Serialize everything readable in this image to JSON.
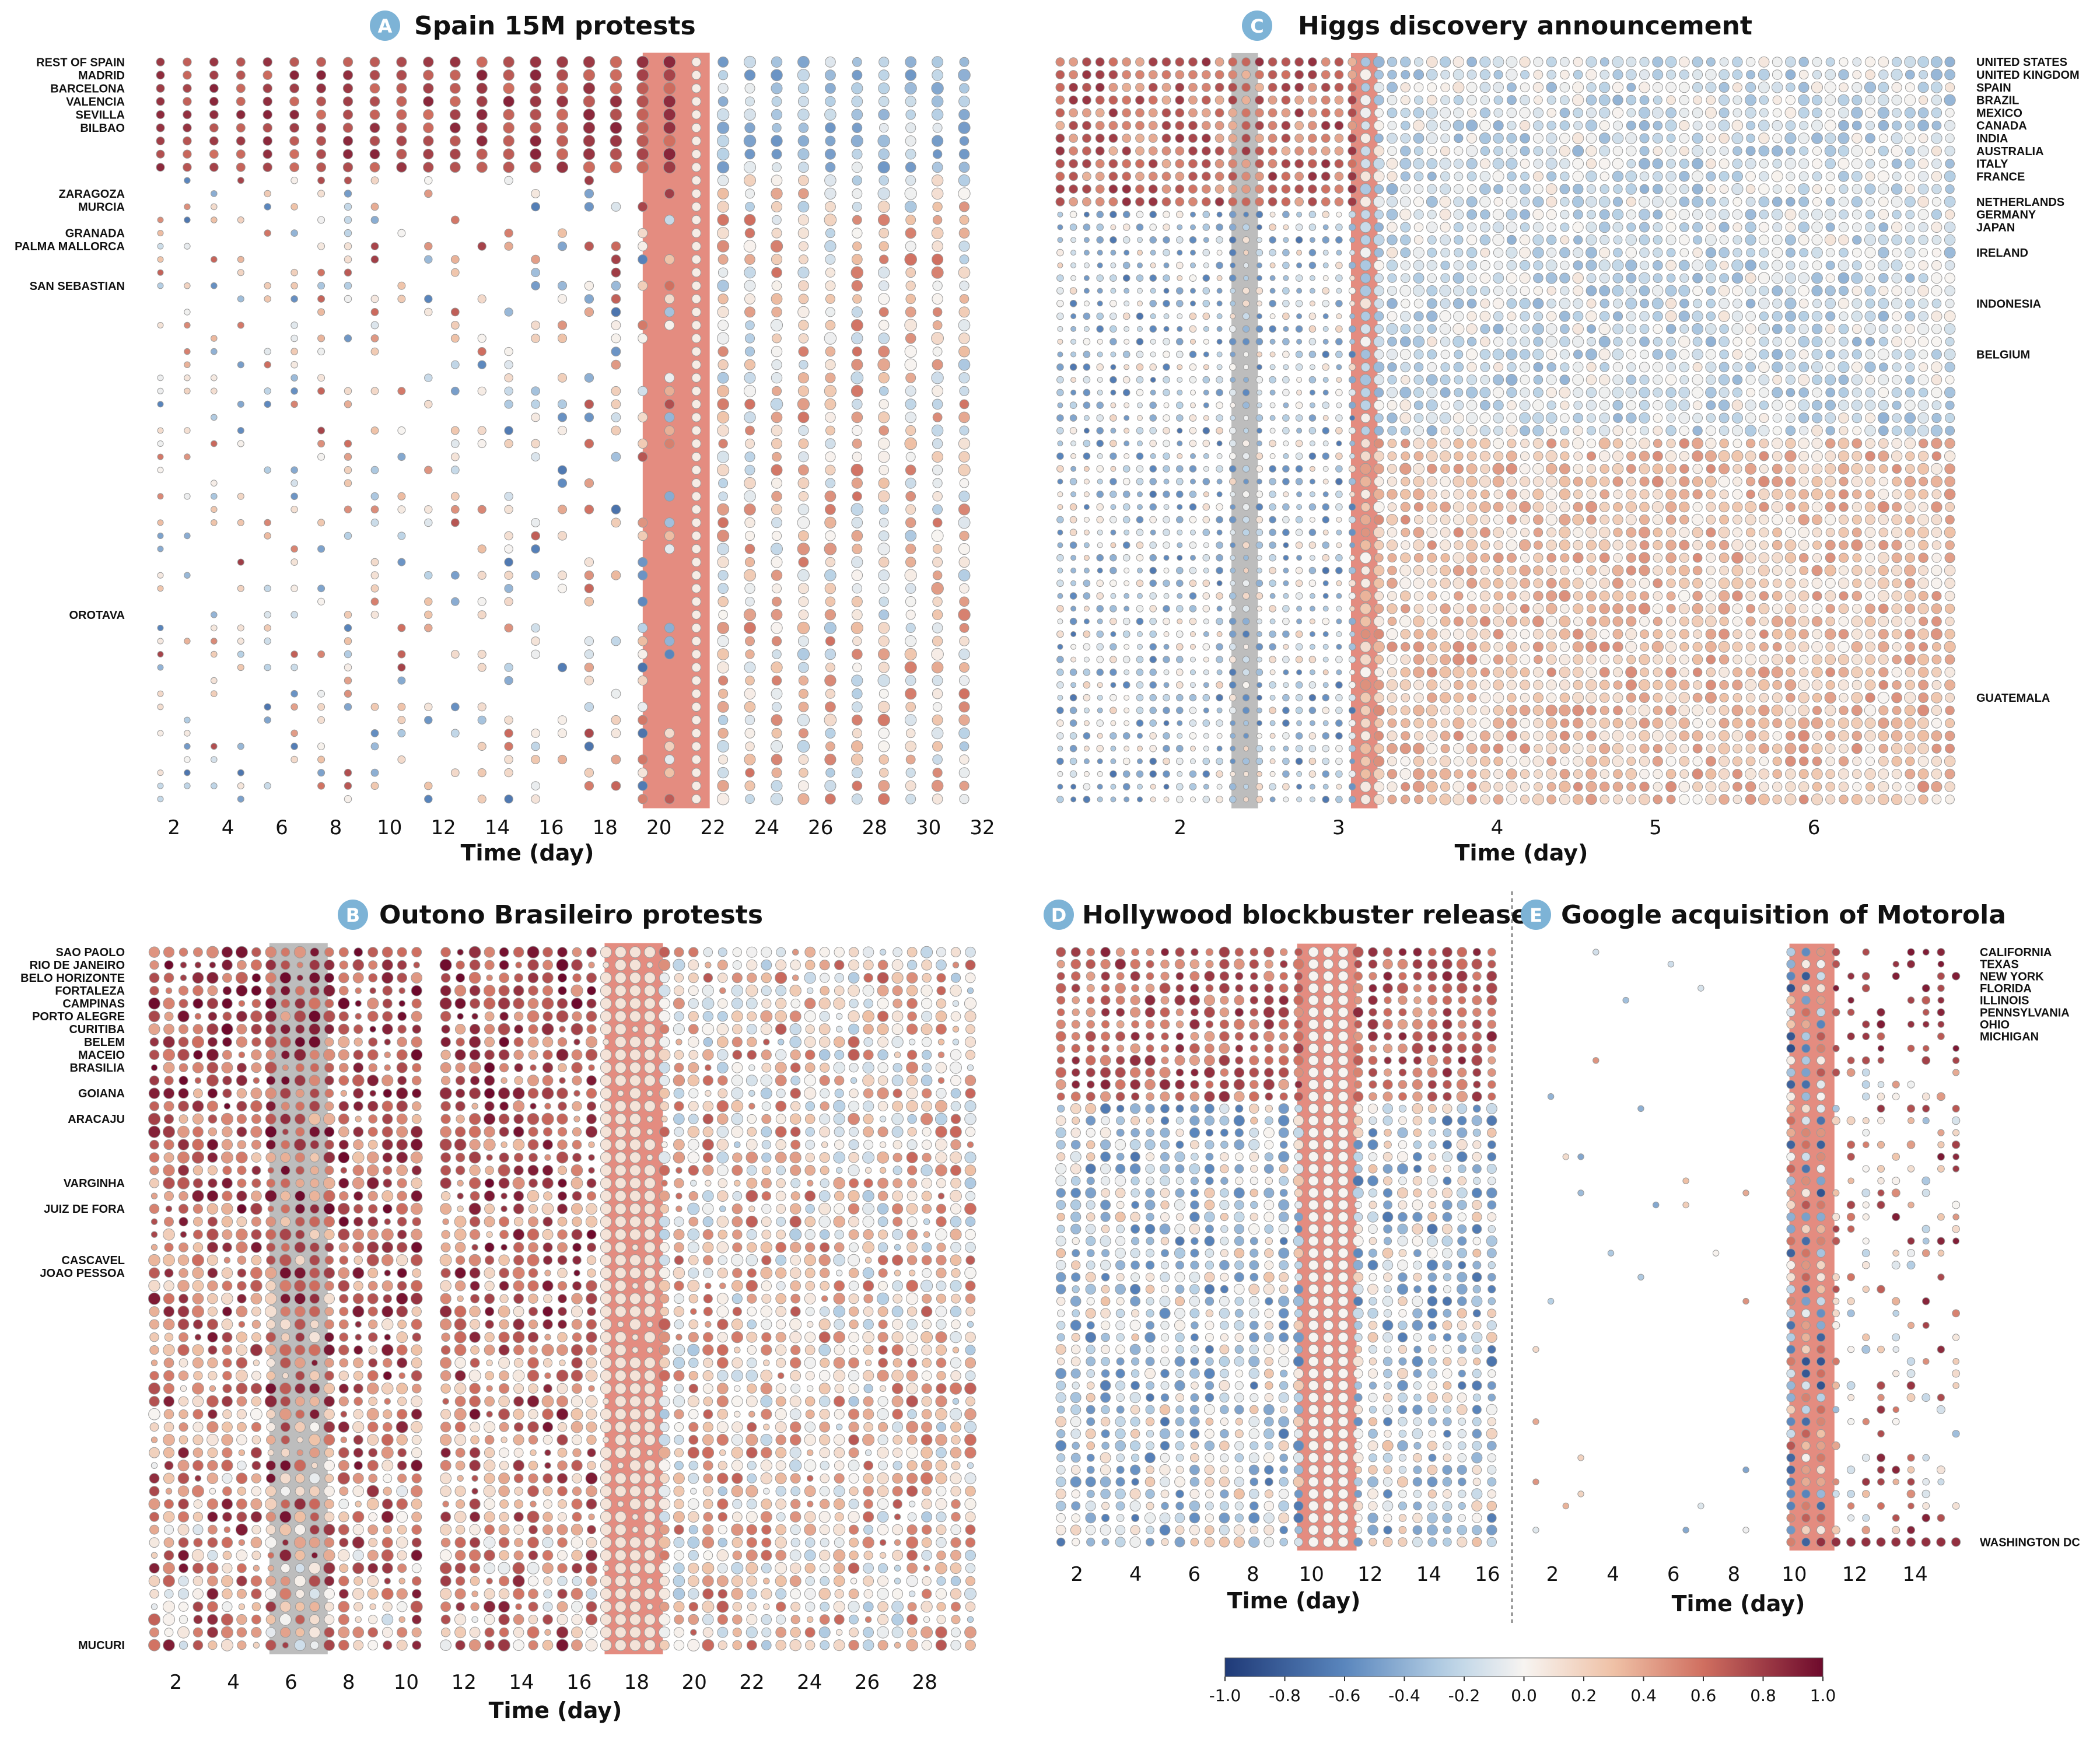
{
  "colors": {
    "negative": "#2b4a8a",
    "neutral": "#f7f7f7",
    "positive": "#7a1030",
    "badge": "#7db3d6",
    "highlight_red": "#e48c80",
    "highlight_gray": "#bdbdbd",
    "divider": "#777777"
  },
  "colorbar": {
    "ticks": [
      "-1.0",
      "-0.8",
      "-0.6",
      "-0.4",
      "-0.2",
      "0.0",
      "0.2",
      "0.4",
      "0.6",
      "0.8",
      "1.0"
    ],
    "range": [
      -1.0,
      1.0
    ]
  },
  "chart_data": [
    {
      "id": "A",
      "type": "scatter",
      "title": "Spain 15M protests",
      "xlabel": "Time (day)",
      "ylabel": "",
      "xlim": [
        1,
        32
      ],
      "x_ticks": [
        "2",
        "4",
        "6",
        "8",
        "10",
        "12",
        "14",
        "16",
        "18",
        "20",
        "22",
        "24",
        "26",
        "28",
        "30",
        "32"
      ],
      "n_rows": 57,
      "n_cols": 31,
      "label_side": "left",
      "row_labels": [
        {
          "row": 0,
          "label": "REST OF SPAIN"
        },
        {
          "row": 1,
          "label": "MADRID"
        },
        {
          "row": 2,
          "label": "BARCELONA"
        },
        {
          "row": 3,
          "label": "VALENCIA"
        },
        {
          "row": 4,
          "label": "SEVILLA"
        },
        {
          "row": 5,
          "label": "BILBAO"
        },
        {
          "row": 10,
          "label": "ZARAGOZA"
        },
        {
          "row": 11,
          "label": "MURCIA"
        },
        {
          "row": 13,
          "label": "GRANADA"
        },
        {
          "row": 14,
          "label": "PALMA MALLORCA"
        },
        {
          "row": 17,
          "label": "SAN SEBASTIAN"
        },
        {
          "row": 42,
          "label": "OROTAVA"
        }
      ],
      "highlights": [
        {
          "from_col": 18.6,
          "to_col": 20.1,
          "color": "red"
        }
      ],
      "pattern": {
        "event_col": 19.5,
        "profile": "spain"
      }
    },
    {
      "id": "B",
      "type": "scatter",
      "title": "Outono Brasileiro protests",
      "xlabel": "Time (day)",
      "ylabel": "",
      "xlim": [
        1,
        30
      ],
      "x_ticks": [
        "2",
        "4",
        "6",
        "8",
        "10",
        "12",
        "14",
        "16",
        "18",
        "20",
        "22",
        "24",
        "26",
        "28"
      ],
      "n_rows": 55,
      "n_cols": 57,
      "label_side": "left",
      "row_labels": [
        {
          "row": 0,
          "label": "SAO PAOLO"
        },
        {
          "row": 1,
          "label": "RIO DE JANEIRO"
        },
        {
          "row": 2,
          "label": "BELO HORIZONTE"
        },
        {
          "row": 3,
          "label": "FORTALEZA"
        },
        {
          "row": 4,
          "label": "CAMPINAS"
        },
        {
          "row": 5,
          "label": "PORTO ALEGRE"
        },
        {
          "row": 6,
          "label": "CURITIBA"
        },
        {
          "row": 7,
          "label": "BELEM"
        },
        {
          "row": 8,
          "label": "MACEIO"
        },
        {
          "row": 9,
          "label": "BRASILIA"
        },
        {
          "row": 11,
          "label": "GOIANA"
        },
        {
          "row": 13,
          "label": "ARACAJU"
        },
        {
          "row": 18,
          "label": "VARGINHA"
        },
        {
          "row": 20,
          "label": "JUIZ DE FORA"
        },
        {
          "row": 24,
          "label": "CASCAVEL"
        },
        {
          "row": 25,
          "label": "JOAO PESSOA"
        },
        {
          "row": 54,
          "label": "MUCURI"
        }
      ],
      "highlights": [
        {
          "from_col": 8.5,
          "to_col": 11.5,
          "color": "gray"
        },
        {
          "from_col": 31.5,
          "to_col": 34.5,
          "color": "red"
        }
      ],
      "gap_cols": [
        19
      ],
      "pattern": {
        "event_col": 33,
        "profile": "brazil"
      }
    },
    {
      "id": "C",
      "type": "scatter",
      "title": "Higgs discovery announcement",
      "xlabel": "Time (day)",
      "ylabel": "",
      "xlim": [
        1.2,
        6.9
      ],
      "x_ticks": [
        "2",
        "3",
        "4",
        "5",
        "6"
      ],
      "n_rows": 59,
      "n_cols": 68,
      "label_side": "right",
      "row_labels": [
        {
          "row": 0,
          "label": "UNITED STATES"
        },
        {
          "row": 1,
          "label": "UNITED KINGDOM"
        },
        {
          "row": 2,
          "label": "SPAIN"
        },
        {
          "row": 3,
          "label": "BRAZIL"
        },
        {
          "row": 4,
          "label": "MEXICO"
        },
        {
          "row": 5,
          "label": "CANADA"
        },
        {
          "row": 6,
          "label": "INDIA"
        },
        {
          "row": 7,
          "label": "AUSTRALIA"
        },
        {
          "row": 8,
          "label": "ITALY"
        },
        {
          "row": 9,
          "label": "FRANCE"
        },
        {
          "row": 11,
          "label": "NETHERLANDS"
        },
        {
          "row": 12,
          "label": "GERMANY"
        },
        {
          "row": 13,
          "label": "JAPAN"
        },
        {
          "row": 15,
          "label": "IRELAND"
        },
        {
          "row": 19,
          "label": "INDONESIA"
        },
        {
          "row": 23,
          "label": "BELGIUM"
        },
        {
          "row": 50,
          "label": "GUATEMALA"
        }
      ],
      "highlights": [
        {
          "from_col": 13.5,
          "to_col": 14.5,
          "color": "gray"
        },
        {
          "from_col": 22.5,
          "to_col": 23.5,
          "color": "red"
        }
      ],
      "pattern": {
        "event_col": 23,
        "profile": "higgs"
      }
    },
    {
      "id": "D",
      "type": "scatter",
      "title": "Hollywood blockbuster release",
      "xlabel": "Time (day)",
      "ylabel": "",
      "xlim": [
        1.2,
        16.4
      ],
      "x_ticks": [
        "2",
        "4",
        "6",
        "8",
        "10",
        "12",
        "14",
        "16"
      ],
      "n_rows": 50,
      "n_cols": 30,
      "label_side": "none",
      "row_labels": [],
      "highlights": [
        {
          "from_col": 16.5,
          "to_col": 19.5,
          "color": "red"
        }
      ],
      "pattern": {
        "event_col": 18,
        "profile": "hollywood"
      }
    },
    {
      "id": "E",
      "type": "scatter",
      "title": "Google acquisition of Motorola",
      "xlabel": "Time (day)",
      "ylabel": "",
      "xlim": [
        1.2,
        15.6
      ],
      "x_ticks": [
        "2",
        "4",
        "6",
        "8",
        "10",
        "12",
        "14"
      ],
      "n_rows": 50,
      "n_cols": 29,
      "label_side": "right",
      "row_labels": [
        {
          "row": 0,
          "label": "CALIFORNIA"
        },
        {
          "row": 1,
          "label": "TEXAS"
        },
        {
          "row": 2,
          "label": "NEW YORK"
        },
        {
          "row": 3,
          "label": "FLORIDA"
        },
        {
          "row": 4,
          "label": "ILLINOIS"
        },
        {
          "row": 5,
          "label": "PENNSYLVANIA"
        },
        {
          "row": 6,
          "label": "OHIO"
        },
        {
          "row": 7,
          "label": "MICHIGAN"
        },
        {
          "row": 49,
          "label": "WASHINGTON DC"
        }
      ],
      "highlights": [
        {
          "from_col": 17.5,
          "to_col": 19.5,
          "color": "red"
        }
      ],
      "pattern": {
        "event_col": 18,
        "profile": "google"
      }
    }
  ]
}
